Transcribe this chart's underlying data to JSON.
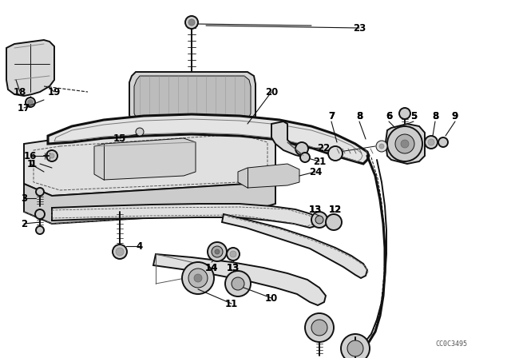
{
  "bg_color": "#ffffff",
  "line_color": "#111111",
  "watermark": "CC0C3495",
  "figsize": [
    6.4,
    4.48
  ],
  "dpi": 100,
  "label_fontsize": 8.5,
  "lw_heavy": 2.2,
  "lw_main": 1.4,
  "lw_thin": 0.7,
  "fc_part": "#e8e8e8",
  "fc_dark": "#c0c0c0"
}
